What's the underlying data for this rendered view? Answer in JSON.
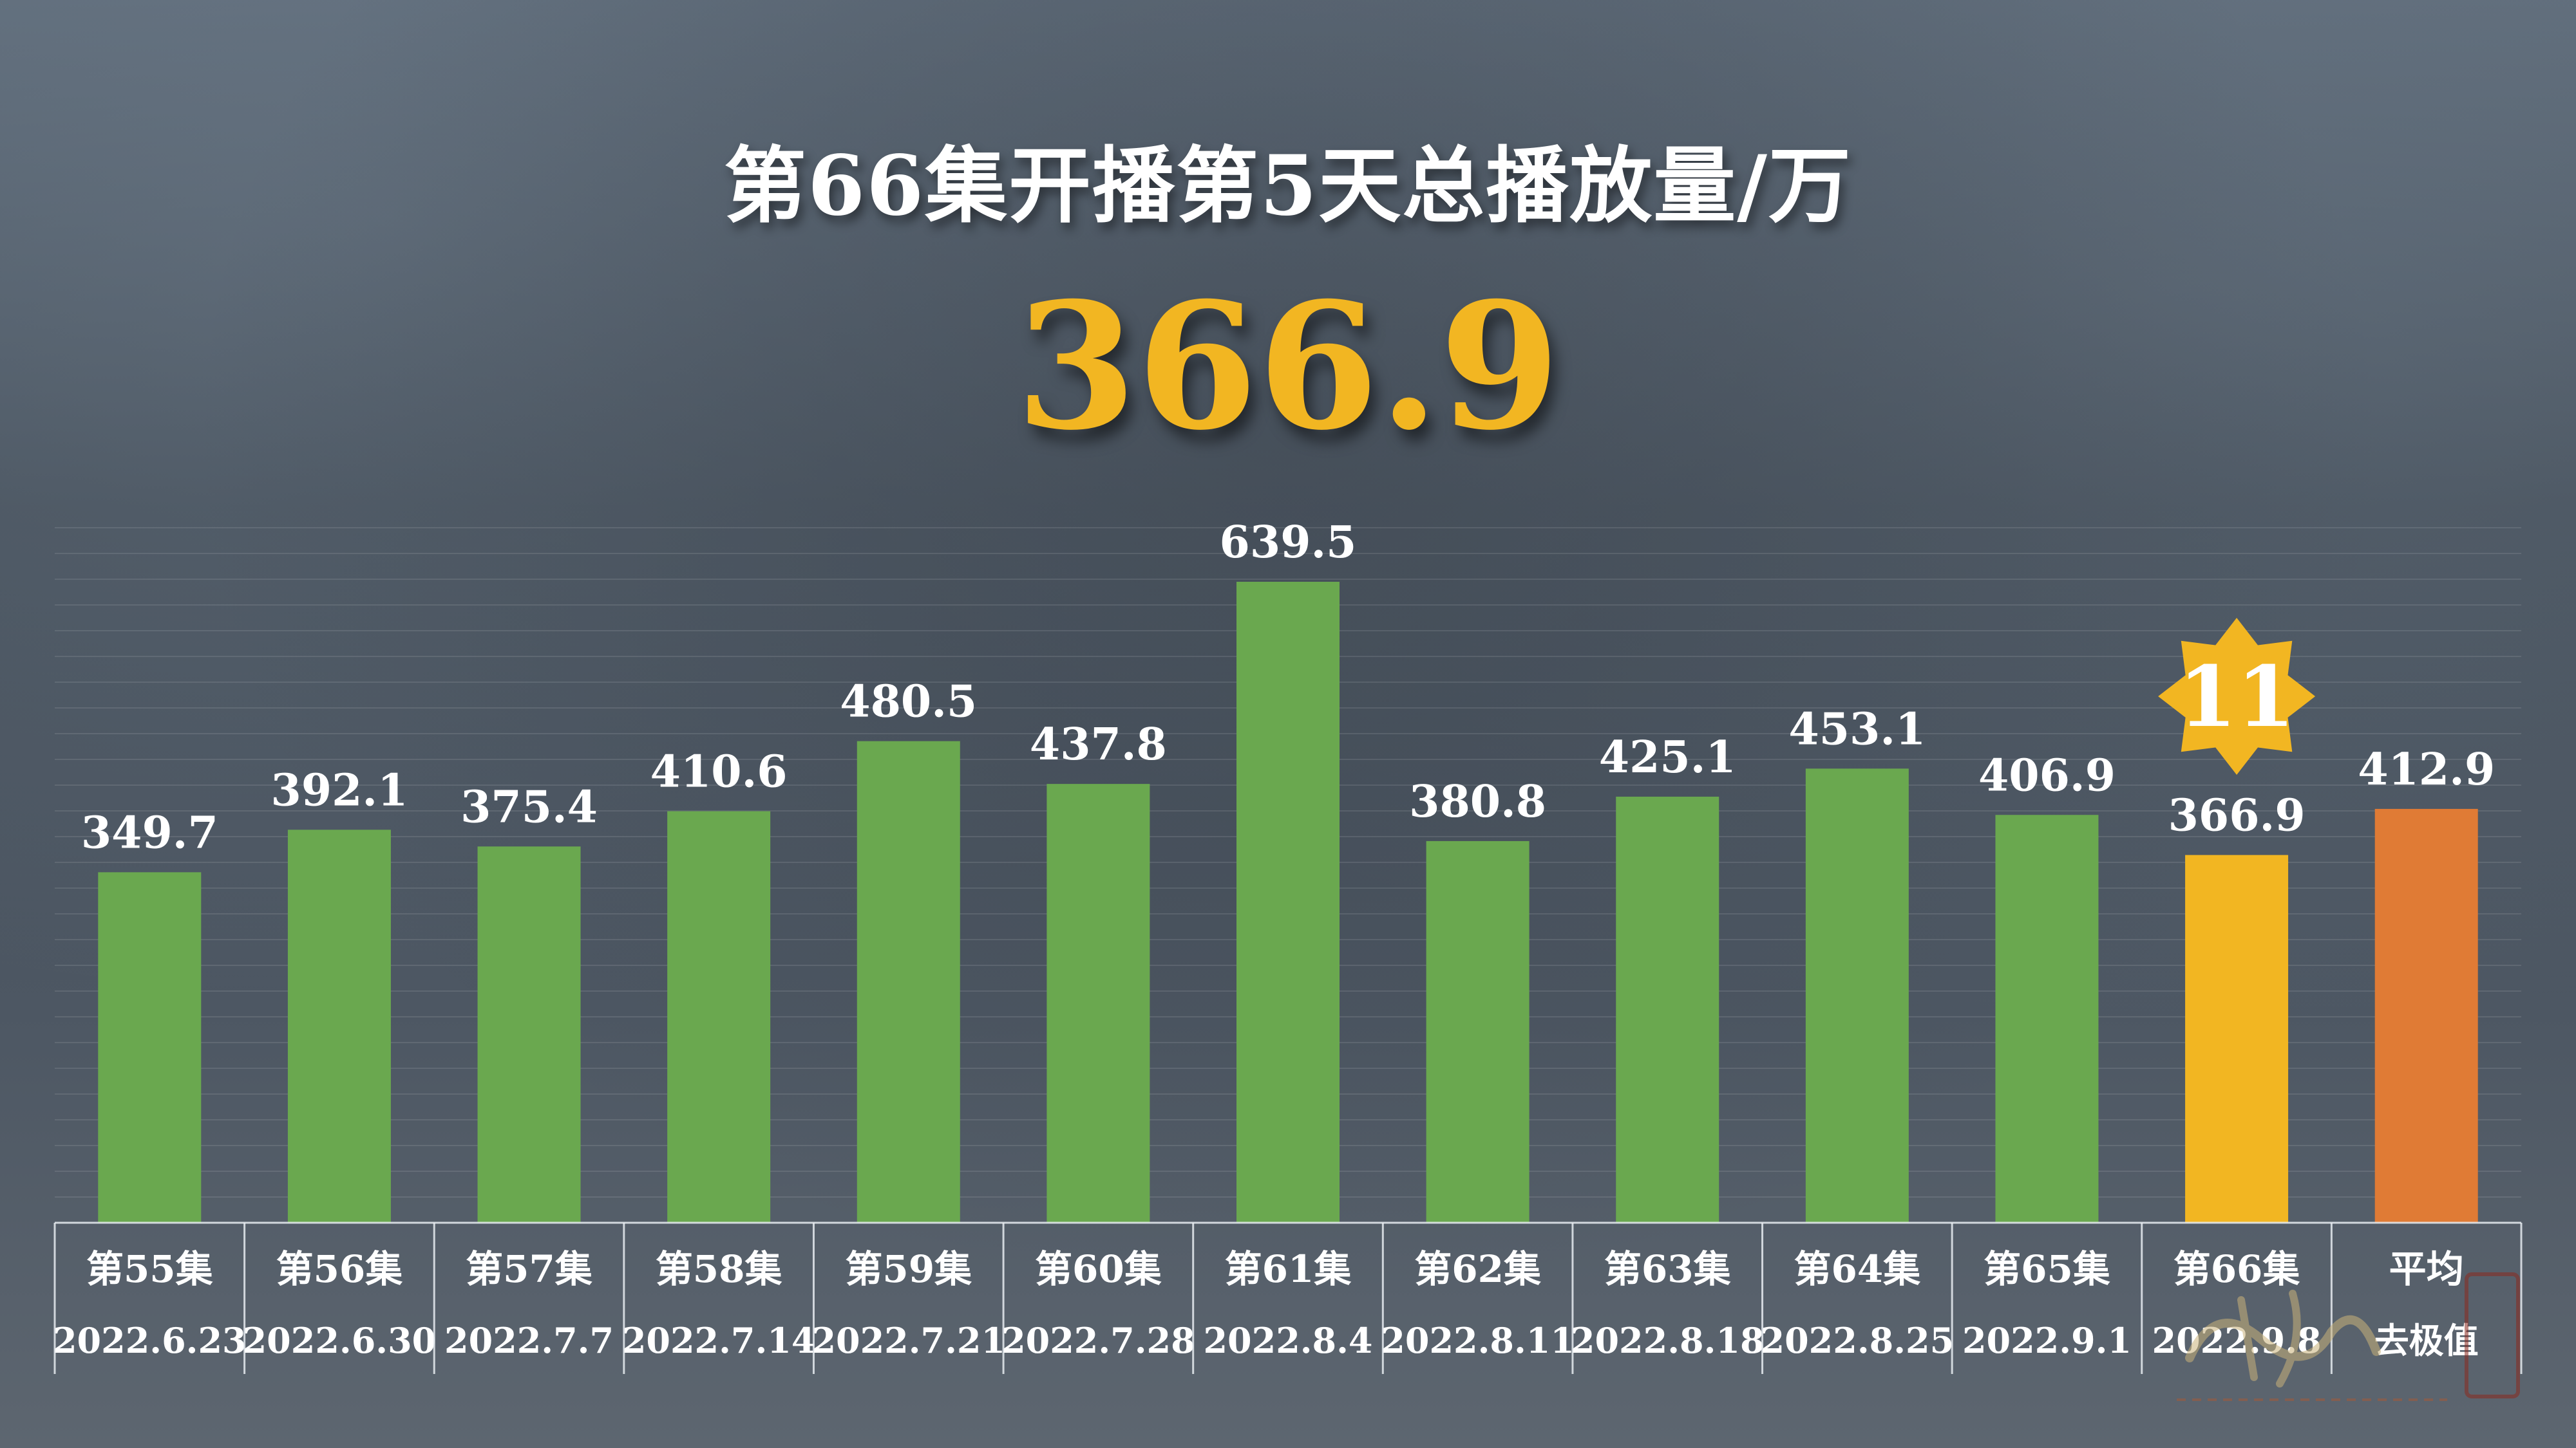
{
  "header": {
    "title": "第66集开播第5天总播放量/万",
    "highlight_value": "366.9"
  },
  "rank_badge": {
    "text": "11",
    "color": "#f2b622"
  },
  "colors": {
    "normal": "#6aa84f",
    "current": "#f2b622",
    "average": "#e07b35"
  },
  "chart_data": {
    "type": "bar",
    "title": "第66集开播第5天总播放量/万",
    "categories": [
      "第55集",
      "第56集",
      "第57集",
      "第58集",
      "第59集",
      "第60集",
      "第61集",
      "第62集",
      "第63集",
      "第64集",
      "第65集",
      "第66集",
      "平均"
    ],
    "dates": [
      "2022.6.23",
      "2022.6.30",
      "2022.7.7",
      "2022.7.14",
      "2022.7.21",
      "2022.7.28",
      "2022.8.4",
      "2022.8.11",
      "2022.8.18",
      "2022.8.25",
      "2022.9.1",
      "2022.9.8",
      "去极值"
    ],
    "values": [
      349.7,
      392.1,
      375.4,
      410.6,
      480.5,
      437.8,
      639.5,
      380.8,
      425.1,
      453.1,
      406.9,
      366.9,
      412.9
    ],
    "value_labels": [
      "349.7",
      "392.1",
      "375.4",
      "410.6",
      "480.5",
      "437.8",
      "639.5",
      "380.8",
      "425.1",
      "453.1",
      "406.9",
      "366.9",
      "412.9"
    ],
    "bar_kinds": [
      "normal",
      "normal",
      "normal",
      "normal",
      "normal",
      "normal",
      "normal",
      "normal",
      "normal",
      "normal",
      "normal",
      "current",
      "average"
    ],
    "ylim": [
      0,
      700
    ],
    "grid": true
  }
}
